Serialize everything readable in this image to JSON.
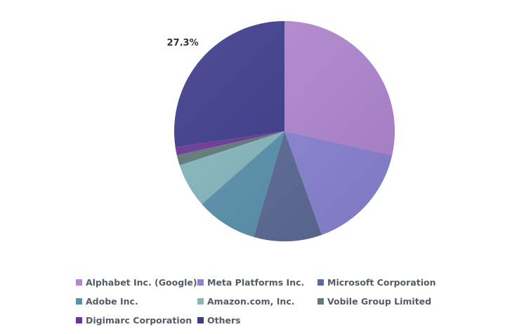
{
  "chart_data": {
    "type": "pie",
    "title": "",
    "series": [
      {
        "name": "Alphabet Inc. (Google)",
        "value": 28.5,
        "color": "#b287d1"
      },
      {
        "name": "Meta Platforms Inc.",
        "value": 16.0,
        "color": "#8b84d6"
      },
      {
        "name": "Microsoft Corporation",
        "value": 10.0,
        "color": "#5b6a97"
      },
      {
        "name": "Adobe Inc.",
        "value": 9.0,
        "color": "#5992ad"
      },
      {
        "name": "Amazon.com, Inc.",
        "value": 6.5,
        "color": "#86b7c0"
      },
      {
        "name": "Vobile Group Limited",
        "value": 1.5,
        "color": "#5f7a78"
      },
      {
        "name": "Digimarc Corporation",
        "value": 1.2,
        "color": "#6b3596"
      },
      {
        "name": "Others",
        "value": 27.3,
        "color": "#3d3a8c"
      }
    ],
    "data_labels": [
      {
        "series": "Others",
        "text": "27.3%"
      }
    ],
    "legend_position": "bottom"
  }
}
